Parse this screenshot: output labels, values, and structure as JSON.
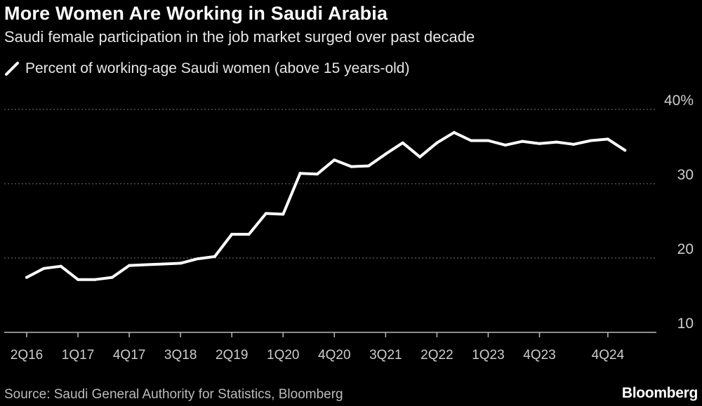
{
  "chart_data": {
    "type": "line",
    "title": "More Women Are Working in Saudi Arabia",
    "subtitle": "Saudi female participation in the job market surged over past decade",
    "series": [
      {
        "name": "Percent of working-age Saudi women (above 15 years-old)",
        "color": "#ffffff",
        "x": [
          "2Q16",
          "3Q16",
          "4Q16",
          "1Q17",
          "2Q17",
          "3Q17",
          "4Q17",
          "1Q18",
          "2Q18",
          "3Q18",
          "4Q18",
          "1Q19",
          "2Q19",
          "3Q19",
          "4Q19",
          "1Q20",
          "2Q20",
          "3Q20",
          "4Q20",
          "1Q21",
          "2Q21",
          "3Q21",
          "4Q21",
          "1Q22",
          "2Q22",
          "3Q22",
          "4Q22",
          "1Q23",
          "2Q23",
          "3Q23",
          "4Q23",
          "1Q24",
          "2Q24",
          "3Q24",
          "4Q24",
          "1Q25"
        ],
        "values": [
          17.4,
          18.6,
          18.9,
          17.1,
          17.1,
          17.4,
          19.0,
          19.1,
          19.2,
          19.3,
          19.9,
          20.2,
          23.2,
          23.2,
          26.0,
          25.9,
          31.4,
          31.3,
          33.2,
          32.3,
          32.4,
          34.0,
          35.5,
          33.6,
          35.5,
          36.9,
          35.8,
          35.8,
          35.2,
          35.7,
          35.4,
          35.6,
          35.3,
          35.8,
          36.0,
          34.5
        ]
      }
    ],
    "y_ticks": [
      "10",
      "20",
      "30",
      "40%"
    ],
    "y_tick_values": [
      10,
      20,
      30,
      40
    ],
    "x_ticks": [
      "2Q16",
      "1Q17",
      "4Q17",
      "3Q18",
      "2Q19",
      "1Q20",
      "4Q20",
      "3Q21",
      "2Q22",
      "1Q23",
      "4Q23",
      "4Q24"
    ],
    "ylim": [
      10,
      40
    ],
    "grid": true,
    "legend_position": "top-left"
  },
  "source": "Source: Saudi General Authority for Statistics, Bloomberg",
  "brand": "Bloomberg"
}
